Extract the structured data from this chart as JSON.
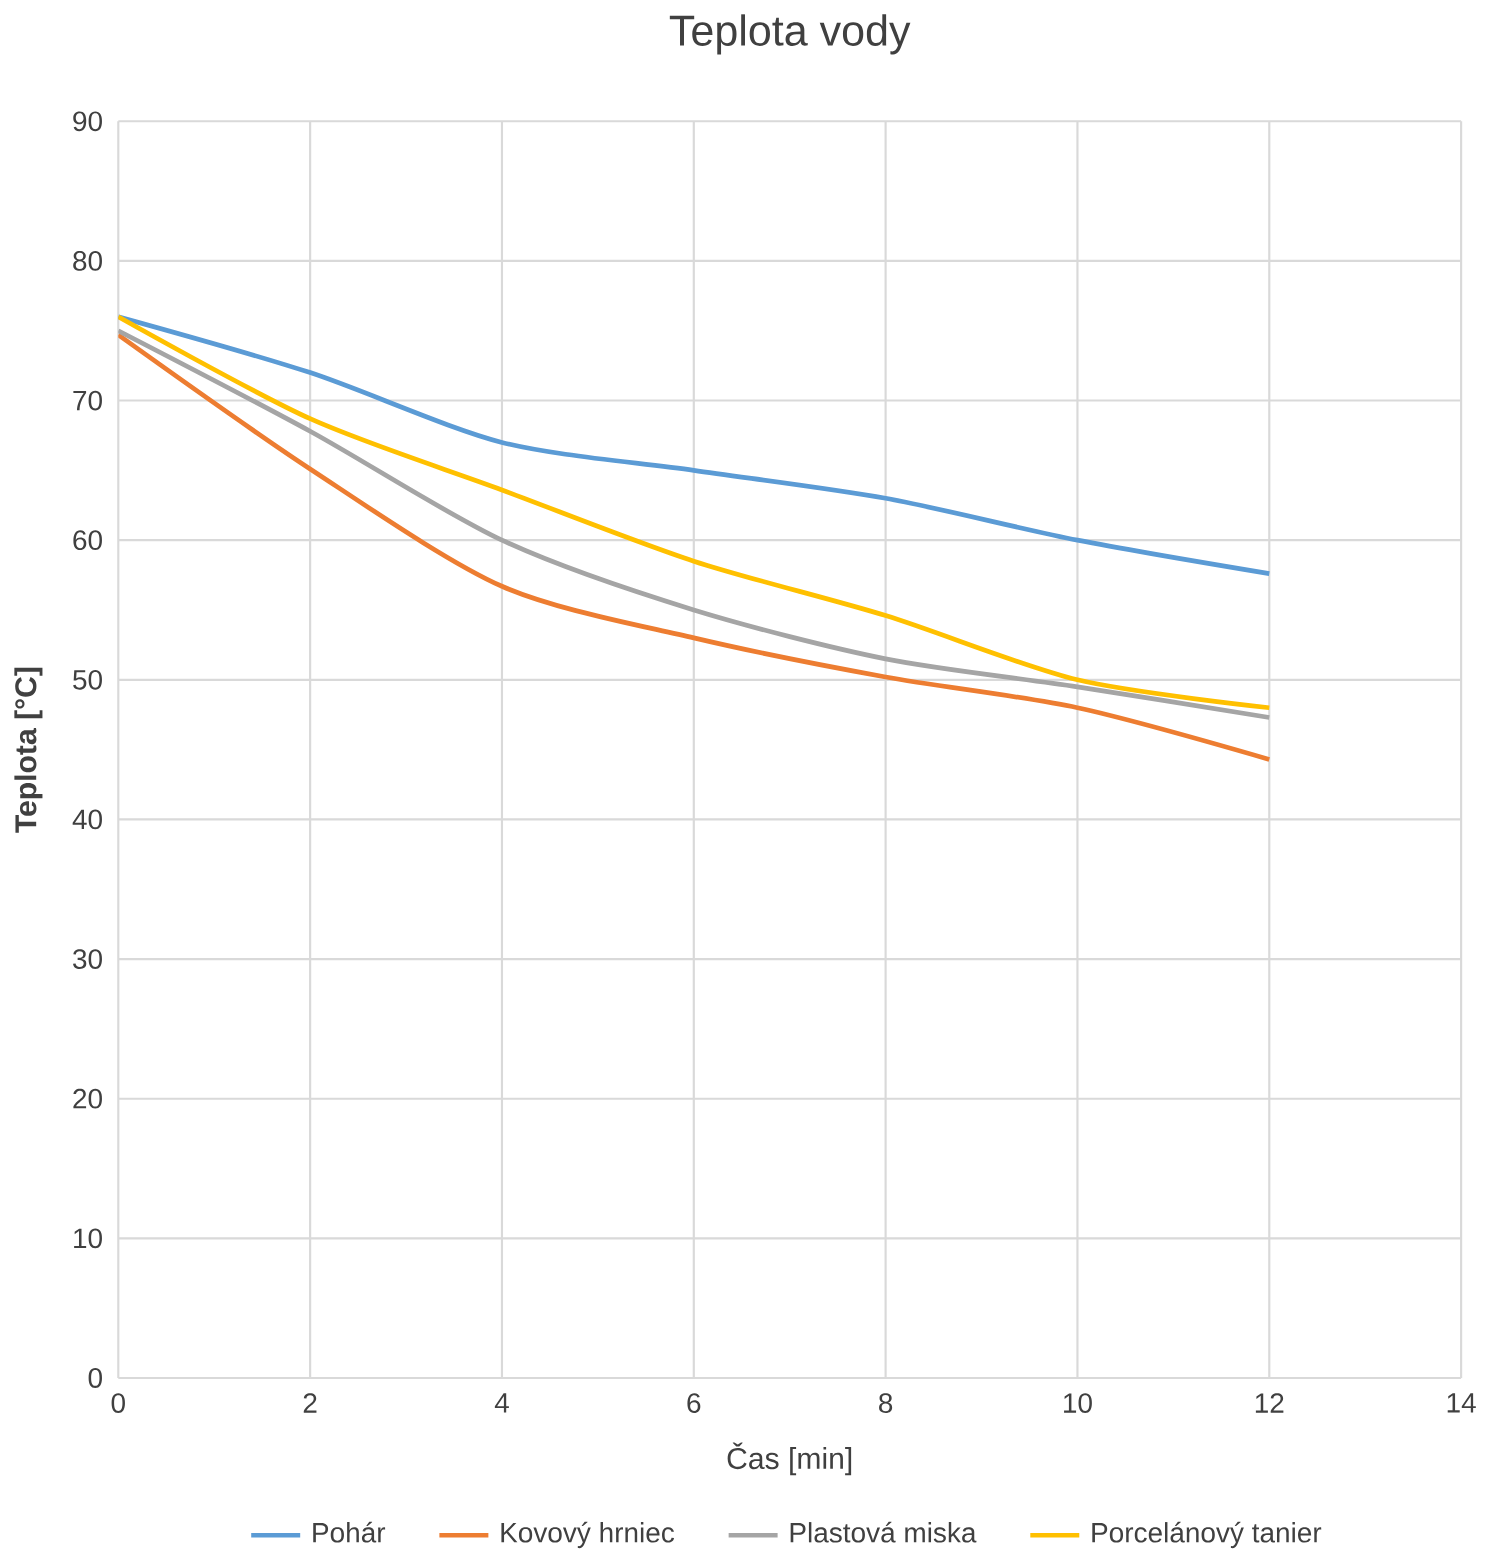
{
  "chart_data": {
    "type": "line",
    "title": "Teplota vody",
    "xlabel": "Čas [min]",
    "ylabel": "Teplota [°C]",
    "x": [
      0,
      2,
      4,
      6,
      8,
      10,
      12
    ],
    "series": [
      {
        "name": "Pohár",
        "color": "#5b9bd5",
        "values": [
          76,
          72,
          67,
          65,
          63,
          60,
          57.6
        ]
      },
      {
        "name": "Kovový hrniec",
        "color": "#ed7d31",
        "values": [
          74.7,
          65.1,
          56.7,
          53,
          50.2,
          48,
          44.3
        ]
      },
      {
        "name": "Plastová miska",
        "color": "#a5a5a5",
        "values": [
          75,
          67.8,
          60,
          55,
          51.5,
          49.5,
          47.3
        ]
      },
      {
        "name": "Porcelánový tanier",
        "color": "#ffc000",
        "values": [
          76,
          68.7,
          63.6,
          58.5,
          54.6,
          50,
          48
        ]
      }
    ],
    "xlim": [
      0,
      14
    ],
    "ylim": [
      0,
      90
    ],
    "xticks": [
      0,
      2,
      4,
      6,
      8,
      10,
      12,
      14
    ],
    "yticks": [
      0,
      10,
      20,
      30,
      40,
      50,
      60,
      70,
      80,
      90
    ],
    "grid": true,
    "legend": "bottom",
    "marker": "none",
    "line_style": "solid"
  }
}
